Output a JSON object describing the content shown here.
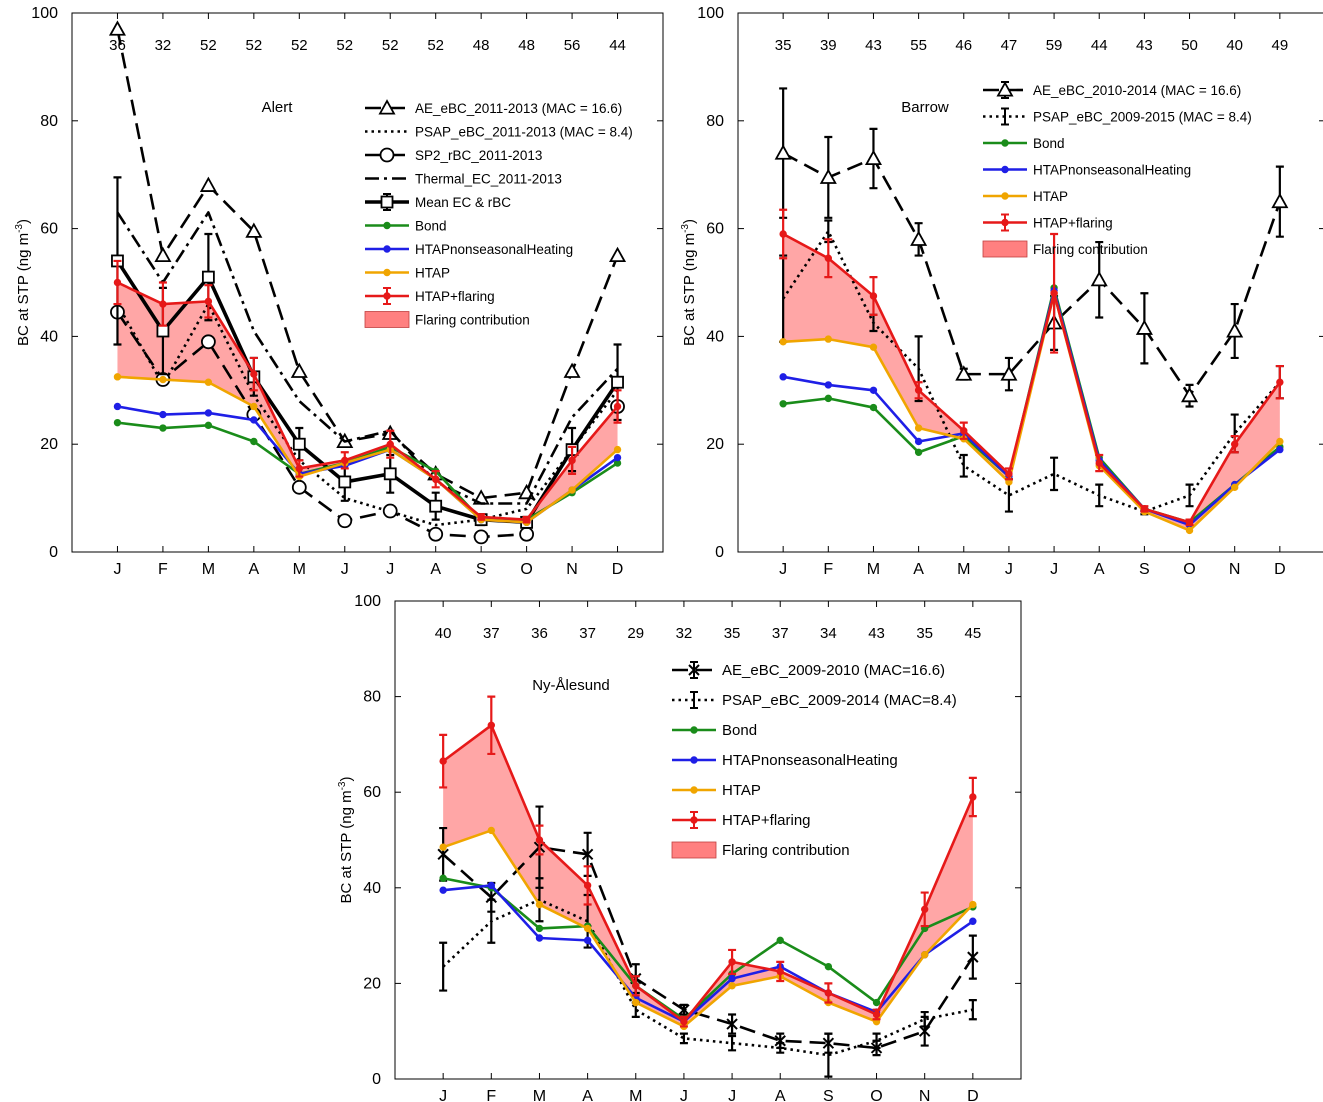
{
  "chart_data": [
    {
      "type": "line",
      "site": "Alert",
      "ylabel": "BC at STP (ng m",
      "ylabel_sup": "-3",
      "ylabel_end": ")",
      "ylim": [
        0,
        100
      ],
      "yticks": [
        0,
        20,
        40,
        60,
        80,
        100
      ],
      "categories": [
        "J",
        "F",
        "M",
        "A",
        "M",
        "J",
        "J",
        "A",
        "S",
        "O",
        "N",
        "D"
      ],
      "counts": [
        "36",
        "32",
        "52",
        "52",
        "52",
        "52",
        "52",
        "52",
        "48",
        "48",
        "56",
        "44"
      ],
      "series": [
        {
          "name": "AE_eBC_2011-2013 (MAC = 16.6)",
          "style": "dashed",
          "marker": "triangle",
          "color": "#000000",
          "values": [
            97,
            55,
            68,
            59.5,
            33.5,
            20.5,
            22,
            14.5,
            10,
            11,
            33.5,
            55
          ]
        },
        {
          "name": "PSAP_eBC_2011-2013 (MAC = 8.4)",
          "style": "dotted",
          "marker": "none",
          "color": "#000000",
          "values": [
            46,
            31,
            46,
            29,
            17,
            10,
            7.5,
            5,
            6,
            8,
            19,
            30
          ]
        },
        {
          "name": "SP2_rBC_2011-2013",
          "style": "dashed",
          "marker": "circle",
          "color": "#000000",
          "values": [
            44.5,
            32,
            39,
            25.5,
            12,
            5.8,
            7.6,
            3.3,
            2.8,
            3.3,
            null,
            27
          ]
        },
        {
          "name": "Thermal_EC_2011-2013",
          "style": "dashdot",
          "marker": "none",
          "color": "#000000",
          "values": [
            63,
            50,
            63,
            41,
            28,
            20.5,
            22.5,
            13,
            9,
            9,
            25,
            34
          ]
        },
        {
          "name": "Mean EC & rBC",
          "style": "solid-thick",
          "marker": "square",
          "color": "#000000",
          "values": [
            54,
            41,
            51,
            32.5,
            20,
            13,
            14.5,
            8.5,
            6,
            5.5,
            19,
            31.5
          ],
          "err": [
            15.5,
            8,
            8,
            3.5,
            3,
            3.5,
            3.5,
            2.5,
            1,
            1,
            4,
            7
          ]
        },
        {
          "name": "Bond",
          "style": "solid",
          "marker": "dot",
          "color": "#1a8c1a",
          "values": [
            24,
            23,
            23.5,
            20.5,
            14.5,
            16.5,
            19.5,
            15,
            6,
            6,
            11,
            16.5
          ]
        },
        {
          "name": "HTAPnonseasonalHeating",
          "style": "solid",
          "marker": "dot",
          "color": "#1f1fe6",
          "values": [
            27,
            25.5,
            25.8,
            24.5,
            14.5,
            16,
            19,
            13.5,
            6,
            5.5,
            11.5,
            17.5
          ]
        },
        {
          "name": "HTAP",
          "style": "solid",
          "marker": "dot",
          "color": "#f0a500",
          "values": [
            32.5,
            32,
            31.5,
            27,
            14,
            16.5,
            19,
            13.5,
            6,
            5.5,
            11.5,
            19
          ]
        },
        {
          "name": "HTAP+flaring",
          "style": "solid",
          "marker": "dot",
          "color": "#e61919",
          "values": [
            50,
            46,
            46.5,
            33,
            15.5,
            17,
            20,
            13.5,
            6.5,
            6,
            17,
            27
          ],
          "err": [
            4,
            4,
            3,
            3,
            1.5,
            1.5,
            2.5,
            1.5,
            0.5,
            0.5,
            2.5,
            3
          ]
        }
      ],
      "legend": [
        "AE_eBC_2011-2013 (MAC = 16.6)",
        "PSAP_eBC_2011-2013 (MAC = 8.4)",
        "SP2_rBC_2011-2013",
        "Thermal_EC_2011-2013",
        "Mean EC & rBC",
        "Bond",
        "HTAPnonseasonalHeating",
        "HTAP",
        "HTAP+flaring",
        "Flaring contribution"
      ],
      "fill_label": "Flaring contribution",
      "fill_color": "#ff8080",
      "legend_placement": "upper-right"
    },
    {
      "type": "line",
      "site": "Barrow",
      "ylabel": "BC at STP (ng m",
      "ylabel_sup": "-3",
      "ylabel_end": ")",
      "ylim": [
        0,
        100
      ],
      "yticks": [
        0,
        20,
        40,
        60,
        80,
        100
      ],
      "categories": [
        "J",
        "F",
        "M",
        "A",
        "M",
        "J",
        "J",
        "A",
        "S",
        "O",
        "N",
        "D"
      ],
      "counts": [
        "35",
        "39",
        "43",
        "55",
        "46",
        "47",
        "59",
        "44",
        "43",
        "50",
        "40",
        "49"
      ],
      "series": [
        {
          "name": "AE_eBC_2010-2014 (MAC = 16.6)",
          "style": "dashed",
          "marker": "triangle",
          "color": "#000000",
          "values": [
            74,
            69.5,
            73,
            58,
            33,
            33,
            42.5,
            50.5,
            41.5,
            29,
            41,
            65
          ],
          "err": [
            12,
            7.5,
            5.5,
            3,
            1,
            3,
            5,
            7,
            6.5,
            2,
            5,
            6.5
          ]
        },
        {
          "name": "PSAP_eBC_2009-2015 (MAC = 8.4)",
          "style": "dotted",
          "marker": "none",
          "color": "#000000",
          "values": [
            47,
            59.5,
            42.5,
            34,
            16,
            10.5,
            14.5,
            10.5,
            7.5,
            10.5,
            22,
            31.5
          ],
          "err": [
            8,
            2,
            1.5,
            6,
            2,
            3,
            3,
            2,
            0.5,
            2,
            3.5,
            3
          ]
        },
        {
          "name": "Bond",
          "style": "solid",
          "marker": "dot",
          "color": "#1a8c1a",
          "values": [
            27.5,
            28.5,
            26.8,
            18.5,
            21.5,
            14,
            49,
            17.5,
            8,
            5.5,
            12.5,
            19.5
          ]
        },
        {
          "name": "HTAPnonseasonalHeating",
          "style": "solid",
          "marker": "dot",
          "color": "#1f1fe6",
          "values": [
            32.5,
            31,
            30,
            20.5,
            22,
            14,
            48.5,
            17,
            8,
            5,
            12.5,
            19
          ]
        },
        {
          "name": "HTAP",
          "style": "solid",
          "marker": "dot",
          "color": "#f0a500",
          "values": [
            39,
            39.5,
            38,
            23,
            21,
            13,
            48,
            16,
            7.5,
            4,
            12,
            20.5
          ]
        },
        {
          "name": "HTAP+flaring",
          "style": "solid",
          "marker": "dot",
          "color": "#e61919",
          "values": [
            59,
            54.5,
            47.5,
            30,
            22.5,
            14.5,
            48,
            16.5,
            8,
            5.5,
            20,
            31.5
          ],
          "err": [
            4.5,
            3.5,
            3.5,
            1.5,
            1.5,
            1,
            11,
            1.5,
            0.5,
            0.5,
            1.5,
            3
          ]
        }
      ],
      "legend": [
        "AE_eBC_2010-2014 (MAC = 16.6)",
        "PSAP_eBC_2009-2015 (MAC = 8.4)",
        "Bond",
        "HTAPnonseasonalHeating",
        "HTAP",
        "HTAP+flaring",
        "Flaring contribution"
      ],
      "fill_label": "Flaring contribution",
      "fill_color": "#ff8080",
      "legend_placement": "upper-right"
    },
    {
      "type": "line",
      "site": "Ny-Ålesund",
      "ylabel": "BC at STP (ng m",
      "ylabel_sup": "-3",
      "ylabel_end": ")",
      "ylim": [
        0,
        100
      ],
      "yticks": [
        0,
        20,
        40,
        60,
        80,
        100
      ],
      "categories": [
        "J",
        "F",
        "M",
        "A",
        "M",
        "J",
        "J",
        "A",
        "S",
        "O",
        "N",
        "D"
      ],
      "counts": [
        "40",
        "37",
        "36",
        "37",
        "29",
        "32",
        "35",
        "37",
        "34",
        "43",
        "35",
        "45"
      ],
      "series": [
        {
          "name": "AE_eBC_2009-2010 (MAC=16.6)",
          "style": "dashed",
          "marker": "x",
          "color": "#000000",
          "values": [
            47,
            38,
            48.5,
            47,
            21,
            14.5,
            11.5,
            8,
            7.5,
            6.5,
            10,
            25.5
          ],
          "err": [
            5.5,
            3,
            8.5,
            4.5,
            3,
            1,
            2,
            1.5,
            2,
            1.5,
            3,
            4.5
          ]
        },
        {
          "name": "PSAP_eBC_2009-2014 (MAC=8.4)",
          "style": "dotted",
          "marker": "none",
          "color": "#000000",
          "values": [
            23.5,
            33,
            37.5,
            33,
            14.5,
            8.5,
            7.5,
            6.5,
            5,
            8,
            12.5,
            14.5
          ],
          "err": [
            5,
            4.5,
            4.5,
            5.5,
            1.5,
            1,
            1.5,
            1,
            4.5,
            1.5,
            1.5,
            2
          ]
        },
        {
          "name": "Bond",
          "style": "solid",
          "marker": "dot",
          "color": "#1a8c1a",
          "values": [
            42,
            40,
            31.5,
            32,
            19.5,
            12.5,
            22,
            29,
            23.5,
            16,
            31.5,
            36
          ]
        },
        {
          "name": "HTAPnonseasonalHeating",
          "style": "solid",
          "marker": "dot",
          "color": "#1f1fe6",
          "values": [
            39.5,
            40.5,
            29.5,
            29,
            17,
            12,
            21,
            23.5,
            18,
            14,
            26,
            33
          ]
        },
        {
          "name": "HTAP",
          "style": "solid",
          "marker": "dot",
          "color": "#f0a500",
          "values": [
            48.5,
            52,
            36.5,
            31.5,
            16,
            11,
            19.5,
            21.5,
            16,
            12,
            26,
            36.5
          ]
        },
        {
          "name": "HTAP+flaring",
          "style": "solid",
          "marker": "dot",
          "color": "#e61919",
          "values": [
            66.5,
            74,
            50,
            40.5,
            19.5,
            12,
            24.5,
            22.5,
            18,
            13.5,
            35.5,
            59
          ],
          "err": [
            5.5,
            6,
            3,
            4,
            2,
            1,
            2.5,
            2,
            2,
            1,
            3.5,
            4
          ]
        }
      ],
      "legend": [
        "AE_eBC_2009-2010 (MAC=16.6)",
        "PSAP_eBC_2009-2014 (MAC=8.4)",
        "Bond",
        "HTAPnonseasonalHeating",
        "HTAP",
        "HTAP+flaring",
        "Flaring contribution"
      ],
      "fill_label": "Flaring contribution",
      "fill_color": "#ff8080",
      "legend_placement": "upper-right"
    }
  ]
}
